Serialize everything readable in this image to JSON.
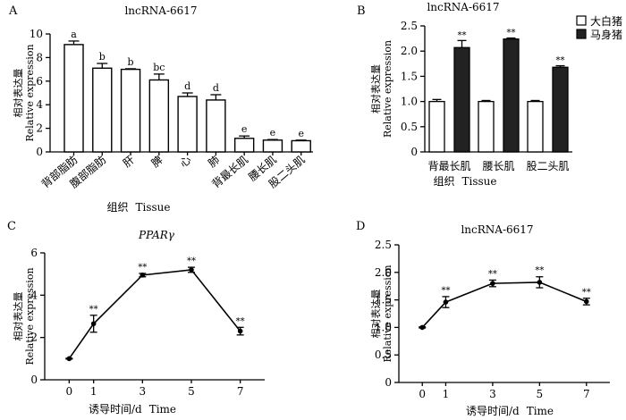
{
  "chart_data": [
    {
      "panel_label": "A",
      "type": "bar",
      "title": "lncRNA-6617",
      "ylabel_cn": "相对表达量",
      "ylabel_en": "Relative expression",
      "xlabel_cn": "组织",
      "xlabel_en": "Tissue",
      "ylim": [
        0,
        10
      ],
      "yticks": [
        "0",
        "2",
        "4",
        "6",
        "8",
        "10"
      ],
      "categories": [
        "背部脂肪",
        "腹部脂肪",
        "肝",
        "脾",
        "心",
        "肺",
        "背最长肌",
        "腰长肌",
        "股二头肌"
      ],
      "values": [
        9.1,
        7.1,
        7.0,
        6.1,
        4.7,
        4.4,
        1.15,
        1.0,
        0.95
      ],
      "errors": [
        0.3,
        0.4,
        0.05,
        0.5,
        0.3,
        0.45,
        0.2,
        0.05,
        0.05
      ],
      "significance": [
        "a",
        "b",
        "b",
        "bc",
        "d",
        "d",
        "e",
        "e",
        "e"
      ],
      "grid": false
    },
    {
      "panel_label": "B",
      "type": "bar",
      "title": "lncRNA-6617",
      "ylabel_cn": "相对表达量",
      "ylabel_en": "Relative expression",
      "xlabel_cn": "组织",
      "xlabel_en": "Tissue",
      "ylim": [
        0,
        2.5
      ],
      "yticks": [
        "0",
        "0.5",
        "1.0",
        "1.5",
        "2.0",
        "2.5"
      ],
      "categories": [
        "背最长肌",
        "腰长肌",
        "股二头肌"
      ],
      "series": [
        {
          "name": "大白猪",
          "color": "#ffffff",
          "values": [
            1.0,
            1.0,
            1.0
          ],
          "errors": [
            0.04,
            0.02,
            0.02
          ],
          "marks": [
            "",
            "",
            ""
          ]
        },
        {
          "name": "马身猪",
          "color": "#222222",
          "values": [
            2.07,
            2.24,
            1.68
          ],
          "errors": [
            0.14,
            0.02,
            0.03
          ],
          "marks": [
            "**",
            "**",
            "**"
          ]
        }
      ],
      "legend_position": "top-right",
      "grid": false
    },
    {
      "panel_label": "C",
      "type": "line",
      "title": "PPARγ",
      "ylabel_cn": "相对表达量",
      "ylabel_en": "Relative expression",
      "xlabel_cn": "诱导时间/d",
      "xlabel_en": "Time",
      "x": [
        0,
        1,
        3,
        5,
        7
      ],
      "xticks": [
        "0",
        "1",
        "3",
        "5",
        "7"
      ],
      "values": [
        1.0,
        2.65,
        4.95,
        5.2,
        2.3
      ],
      "errors": [
        0.02,
        0.4,
        0.08,
        0.12,
        0.18
      ],
      "marks": [
        "",
        "**",
        "**",
        "**",
        "**"
      ],
      "ylim": [
        0,
        6
      ],
      "yticks": [
        "0",
        "2",
        "4",
        "6"
      ],
      "grid": false
    },
    {
      "panel_label": "D",
      "type": "line",
      "title": "lncRNA-6617",
      "ylabel_cn": "相对表达量",
      "ylabel_en": "Relative expression",
      "xlabel_cn": "诱导时间/d",
      "xlabel_en": "Time",
      "x": [
        0,
        1,
        3,
        5,
        7
      ],
      "xticks": [
        "0",
        "1",
        "3",
        "5",
        "7"
      ],
      "values": [
        1.0,
        1.46,
        1.8,
        1.82,
        1.47
      ],
      "errors": [
        0.01,
        0.1,
        0.06,
        0.1,
        0.06
      ],
      "marks": [
        "",
        "**",
        "**",
        "**",
        "**"
      ],
      "ylim": [
        0,
        2.5
      ],
      "yticks": [
        "0",
        "0.5",
        "1.0",
        "1.5",
        "2.0",
        "2.5"
      ],
      "grid": false
    }
  ]
}
